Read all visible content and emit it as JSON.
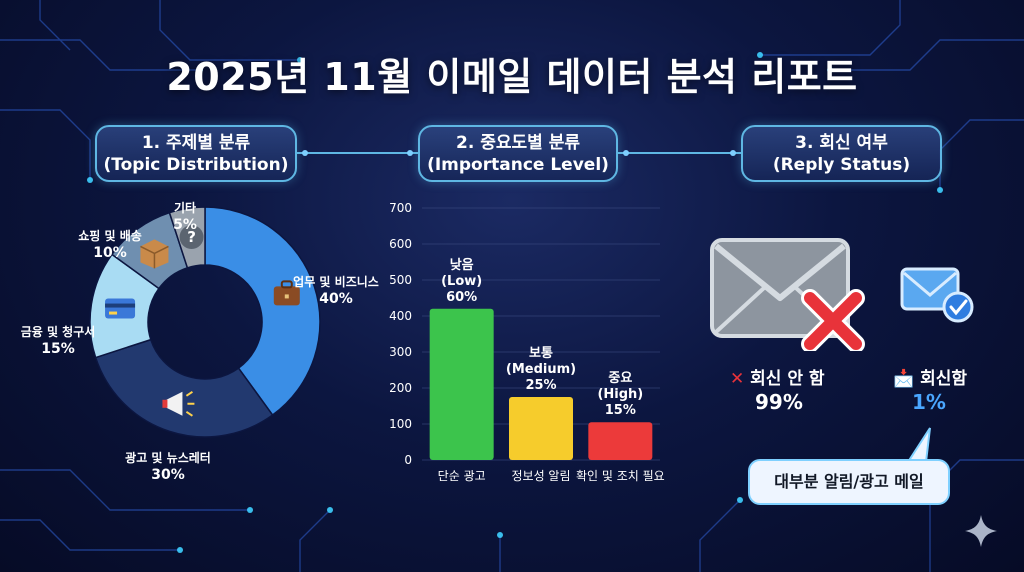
{
  "title": "2025년 11월 이메일 데이터 분석 리포트",
  "sections": {
    "topic": {
      "line1": "1. 주제별 분류",
      "line2": "(Topic Distribution)"
    },
    "importance": {
      "line1": "2. 중요도별 분류",
      "line2": "(Importance Level)"
    },
    "reply": {
      "line1": "3. 회신 여부",
      "line2": "(Reply Status)"
    }
  },
  "chart_data": [
    {
      "type": "pie",
      "variant": "donut",
      "slices": [
        {
          "label": "업무 및 비즈니스",
          "value": 40,
          "value_label": "40%",
          "color": "#3a8ee6",
          "icon": "briefcase-icon"
        },
        {
          "label": "광고 및 뉴스레터",
          "value": 30,
          "value_label": "30%",
          "color": "#22396f",
          "icon": "megaphone-icon"
        },
        {
          "label": "금융 및 청구서",
          "value": 15,
          "value_label": "15%",
          "color": "#a9dcf3",
          "icon": "credit-card-icon"
        },
        {
          "label": "쇼핑 및 배송",
          "value": 10,
          "value_label": "10%",
          "color": "#6f8fb0",
          "icon": "package-icon"
        },
        {
          "label": "기타",
          "value": 5,
          "value_label": "5%",
          "color": "#9aa3ae",
          "icon": "question-icon"
        }
      ]
    },
    {
      "type": "bar",
      "categories": [
        "단순 광고",
        "정보성 알림",
        "확인 및 조치 필요"
      ],
      "values": [
        420,
        175,
        105
      ],
      "ylim": [
        0,
        700
      ],
      "yticks": [
        0,
        100,
        200,
        300,
        400,
        500,
        600,
        700
      ],
      "grid": true,
      "colors": [
        "#3cc44c",
        "#f6cc2c",
        "#ec3a3a"
      ],
      "annotations": [
        {
          "line1": "낮음",
          "line2": "(Low)",
          "line3": "60%"
        },
        {
          "line1": "보통",
          "line2": "(Medium)",
          "line3": "25%"
        },
        {
          "line1": "중요",
          "line2": "(High)",
          "line3": "15%"
        }
      ]
    },
    {
      "type": "table",
      "rows": [
        {
          "label": "회신 안 함",
          "value": "99%",
          "icon": "x-mark-icon",
          "color": "#ffffff"
        },
        {
          "label": "회신함",
          "value": "1%",
          "icon": "inbox-tray-icon",
          "color": "#4aa6ff"
        }
      ]
    }
  ],
  "reply": {
    "not_replied_label": "회신 안 함",
    "not_replied_value": "99%",
    "replied_label": "회신함",
    "replied_value": "1%",
    "callout": "대부분 알림/광고 메일"
  }
}
